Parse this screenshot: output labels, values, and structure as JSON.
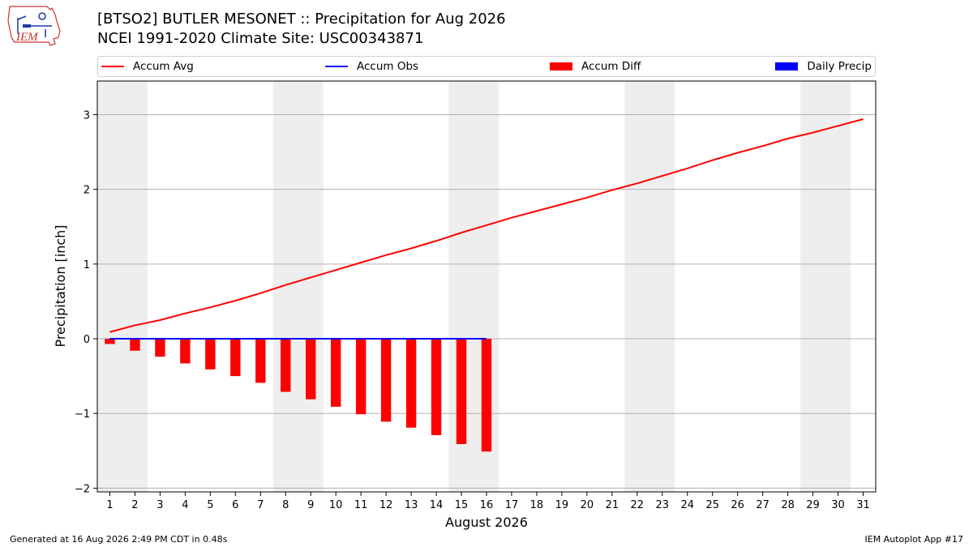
{
  "header": {
    "title_line1": "[BTSO2] BUTLER MESONET :: Precipitation for Aug 2026",
    "title_line2": "NCEI 1991-2020 Climate Site: USC00343871",
    "logo_text": "IEM"
  },
  "legend": {
    "items": [
      {
        "label": "Accum Avg",
        "kind": "line",
        "color": "#ff0000"
      },
      {
        "label": "Accum Obs",
        "kind": "line",
        "color": "#0000ff"
      },
      {
        "label": "Accum Diff",
        "kind": "patch",
        "color": "#ff0000"
      },
      {
        "label": "Daily Precip",
        "kind": "patch",
        "color": "#0000ff"
      }
    ]
  },
  "chart_data": {
    "type": "bar",
    "title": "[BTSO2] BUTLER MESONET :: Precipitation for Aug 2026",
    "subtitle": "NCEI 1991-2020 Climate Site: USC00343871",
    "xlabel": "August 2026",
    "ylabel": "Precipitation [inch]",
    "xlim": [
      0.5,
      31.5
    ],
    "ylim": [
      -2.05,
      3.45
    ],
    "x_ticks": [
      1,
      2,
      3,
      4,
      5,
      6,
      7,
      8,
      9,
      10,
      11,
      12,
      13,
      14,
      15,
      16,
      17,
      18,
      19,
      20,
      21,
      22,
      23,
      24,
      25,
      26,
      27,
      28,
      29,
      30,
      31
    ],
    "y_ticks": [
      -2,
      -1,
      0,
      1,
      2,
      3
    ],
    "y_tick_labels": [
      "−2",
      "−1",
      "0",
      "1",
      "2",
      "3"
    ],
    "grid": "horizontal",
    "legend_position": "top",
    "weekend_shading_days": [
      [
        1,
        2
      ],
      [
        8,
        9
      ],
      [
        15,
        16
      ],
      [
        22,
        23
      ],
      [
        29,
        30
      ]
    ],
    "series": [
      {
        "name": "Accum Avg",
        "type": "line",
        "color": "#ff0000",
        "x": [
          1,
          2,
          3,
          4,
          5,
          6,
          7,
          8,
          9,
          10,
          11,
          12,
          13,
          14,
          15,
          16,
          17,
          18,
          19,
          20,
          21,
          22,
          23,
          24,
          25,
          26,
          27,
          28,
          29,
          30,
          31
        ],
        "values": [
          0.09,
          0.18,
          0.25,
          0.34,
          0.42,
          0.51,
          0.61,
          0.72,
          0.82,
          0.92,
          1.02,
          1.12,
          1.21,
          1.31,
          1.42,
          1.52,
          1.62,
          1.71,
          1.8,
          1.89,
          1.99,
          2.08,
          2.18,
          2.28,
          2.39,
          2.49,
          2.58,
          2.68,
          2.76,
          2.85,
          2.94
        ]
      },
      {
        "name": "Accum Obs",
        "type": "line",
        "color": "#0000ff",
        "x": [
          1,
          2,
          3,
          4,
          5,
          6,
          7,
          8,
          9,
          10,
          11,
          12,
          13,
          14,
          15,
          16
        ],
        "values": [
          0,
          0,
          0,
          0,
          0,
          0,
          0,
          0,
          0,
          0,
          0,
          0,
          0,
          0,
          0,
          0
        ]
      },
      {
        "name": "Accum Diff",
        "type": "bar",
        "color": "#ff0000",
        "x": [
          1,
          2,
          3,
          4,
          5,
          6,
          7,
          8,
          9,
          10,
          11,
          12,
          13,
          14,
          15,
          16
        ],
        "values": [
          -0.07,
          -0.16,
          -0.24,
          -0.33,
          -0.41,
          -0.5,
          -0.59,
          -0.71,
          -0.81,
          -0.91,
          -1.01,
          -1.11,
          -1.19,
          -1.29,
          -1.41,
          -1.51
        ]
      },
      {
        "name": "Daily Precip",
        "type": "bar",
        "color": "#0000ff",
        "x": [
          1,
          2,
          3,
          4,
          5,
          6,
          7,
          8,
          9,
          10,
          11,
          12,
          13,
          14,
          15,
          16
        ],
        "values": [
          0,
          0,
          0,
          0,
          0,
          0,
          0,
          0,
          0,
          0,
          0,
          0,
          0,
          0,
          0,
          0
        ]
      }
    ]
  },
  "footer": {
    "generated": "Generated at 16 Aug 2026 2:49 PM CDT in 0.48s",
    "app": "IEM Autoplot App #17"
  }
}
